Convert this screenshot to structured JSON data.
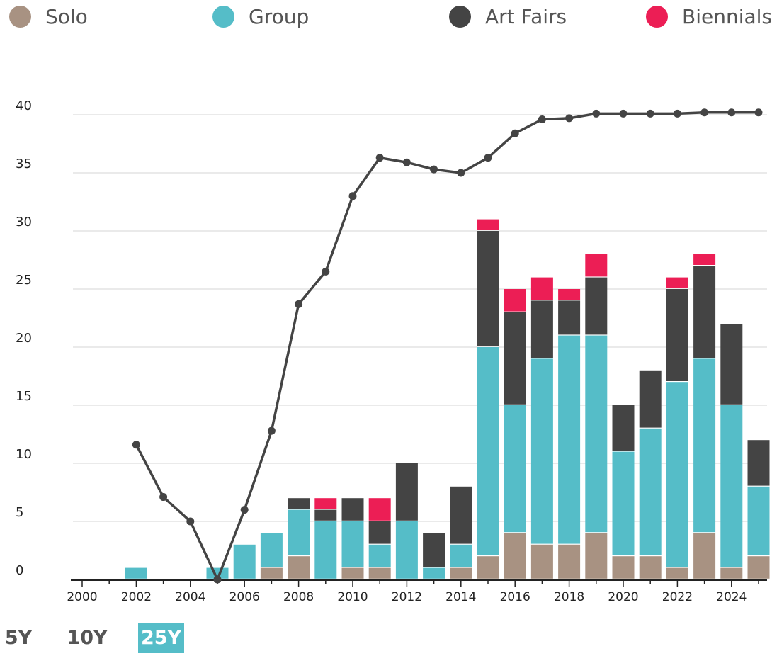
{
  "legend": [
    {
      "key": "solo",
      "label": "Solo",
      "color": "#a89282"
    },
    {
      "key": "group",
      "label": "Group",
      "color": "#55bdc8"
    },
    {
      "key": "art_fairs",
      "label": "Art Fairs",
      "color": "#444444"
    },
    {
      "key": "biennials",
      "label": "Biennials",
      "color": "#ec1e55"
    }
  ],
  "range_tabs": [
    {
      "label": "5Y",
      "active": false
    },
    {
      "label": "10Y",
      "active": false
    },
    {
      "label": "25Y",
      "active": true
    }
  ],
  "chart_data": {
    "type": "bar",
    "stacked": true,
    "title": "",
    "xlabel": "",
    "ylabel": "",
    "ylim": [
      0,
      40
    ],
    "y_ticks": [
      0,
      5,
      10,
      15,
      20,
      25,
      30,
      35,
      40
    ],
    "x_ticks": [
      "2000",
      "2002",
      "2004",
      "2006",
      "2008",
      "2010",
      "2012",
      "2014",
      "2016",
      "2018",
      "2020",
      "2022",
      "2024"
    ],
    "grid": true,
    "legend_position": "top",
    "categories": [
      "2000",
      "2001",
      "2002",
      "2003",
      "2004",
      "2005",
      "2006",
      "2007",
      "2008",
      "2009",
      "2010",
      "2011",
      "2012",
      "2013",
      "2014",
      "2015",
      "2016",
      "2017",
      "2018",
      "2019",
      "2020",
      "2021",
      "2022",
      "2023",
      "2024",
      "2025"
    ],
    "series": [
      {
        "name": "Solo",
        "color": "#a89282",
        "values": [
          0,
          0,
          0,
          0,
          0,
          0,
          0,
          1,
          2,
          0,
          1,
          1,
          0,
          0,
          1,
          2,
          4,
          3,
          3,
          4,
          2,
          2,
          1,
          4,
          1,
          2
        ]
      },
      {
        "name": "Group",
        "color": "#55bdc8",
        "values": [
          0,
          0,
          1,
          0,
          0,
          1,
          3,
          3,
          4,
          5,
          4,
          2,
          5,
          1,
          2,
          18,
          11,
          16,
          18,
          17,
          9,
          11,
          16,
          15,
          14,
          6
        ]
      },
      {
        "name": "Art Fairs",
        "color": "#444444",
        "values": [
          0,
          0,
          0,
          0,
          0,
          0,
          0,
          0,
          1,
          1,
          2,
          2,
          5,
          3,
          5,
          10,
          8,
          5,
          3,
          5,
          4,
          5,
          8,
          8,
          7,
          4
        ]
      },
      {
        "name": "Biennials",
        "color": "#ec1e55",
        "values": [
          0,
          0,
          0,
          0,
          0,
          0,
          0,
          0,
          0,
          1,
          0,
          2,
          0,
          0,
          0,
          1,
          2,
          2,
          1,
          2,
          0,
          0,
          1,
          1,
          0,
          0
        ]
      }
    ],
    "line": {
      "name": "Trend",
      "color": "#444444",
      "x": [
        "2002",
        "2003",
        "2004",
        "2005",
        "2006",
        "2007",
        "2008",
        "2009",
        "2010",
        "2011",
        "2012",
        "2013",
        "2014",
        "2015",
        "2016",
        "2017",
        "2018",
        "2019",
        "2020",
        "2021",
        "2022",
        "2023",
        "2024",
        "2025"
      ],
      "values": [
        11.6,
        7.1,
        5,
        0,
        6,
        12.8,
        23.7,
        26.5,
        33,
        36.3,
        35.9,
        35.3,
        35,
        36.3,
        38.4,
        39.6,
        39.7,
        40.1,
        40.1,
        40.1,
        40.1,
        40.2,
        40.2,
        40.2
      ]
    }
  }
}
